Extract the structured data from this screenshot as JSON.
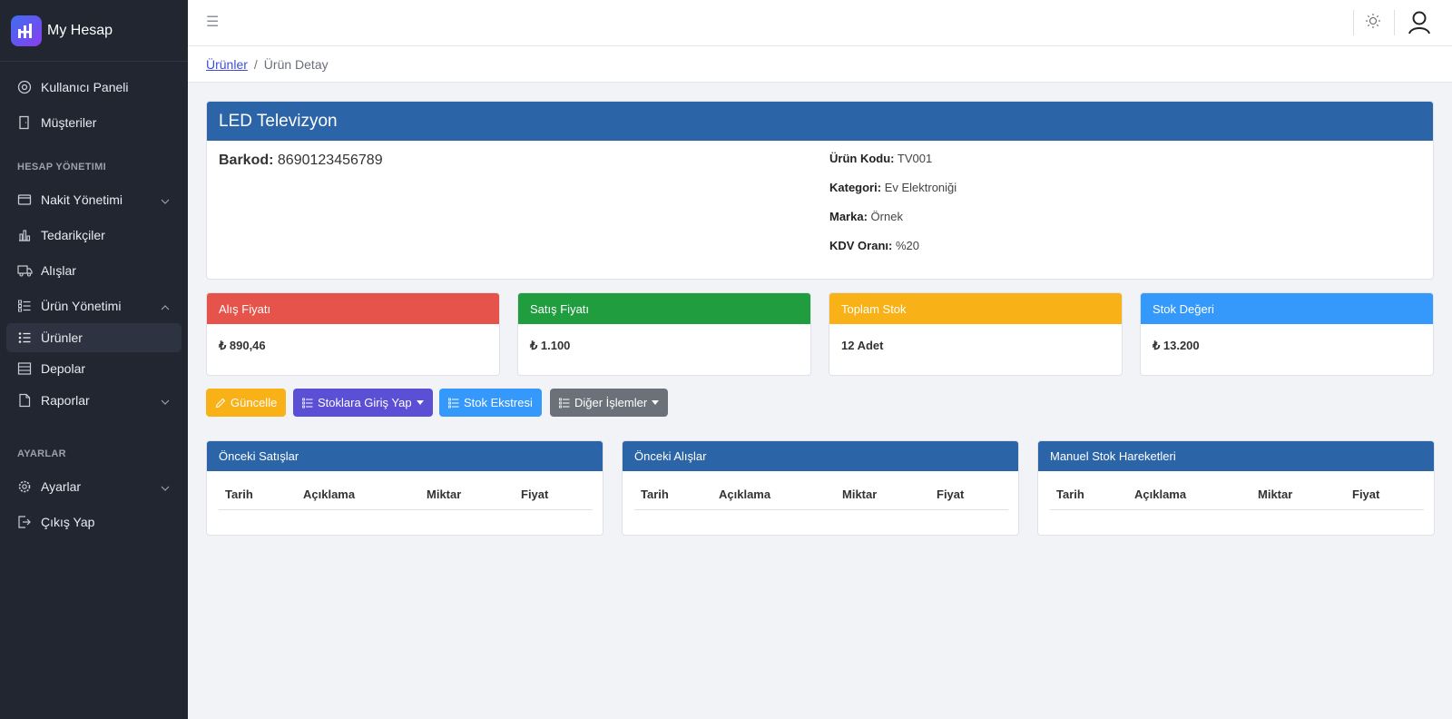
{
  "brand": {
    "name": "My Hesap"
  },
  "sidebar": {
    "items": [
      {
        "label": "Kullanıcı Paneli",
        "icon": "dashboard-icon"
      },
      {
        "label": "Müşteriler",
        "icon": "door-icon"
      }
    ],
    "section1": "HESAP YÖNETIMI",
    "account_items": [
      {
        "label": "Nakit Yönetimi",
        "icon": "wallet-icon",
        "chevron": "down"
      },
      {
        "label": "Tedarikçiler",
        "icon": "bar-chart-icon"
      },
      {
        "label": "Alışlar",
        "icon": "truck-icon"
      },
      {
        "label": "Ürün Yönetimi",
        "icon": "list-icon",
        "chevron": "up"
      },
      {
        "label": "Ürünler",
        "icon": "list-bullets-icon",
        "active": true
      },
      {
        "label": "Depolar",
        "icon": "storage-icon"
      },
      {
        "label": "Raporlar",
        "icon": "file-icon",
        "chevron": "down"
      }
    ],
    "section2": "AYARLAR",
    "settings_items": [
      {
        "label": "Ayarlar",
        "icon": "gear-icon",
        "chevron": "down"
      },
      {
        "label": "Çıkış Yap",
        "icon": "logout-icon"
      }
    ]
  },
  "breadcrumb": {
    "parent": "Ürünler",
    "separator": "/",
    "current": "Ürün Detay"
  },
  "product": {
    "title": "LED Televizyon",
    "barkod_label": "Barkod:",
    "barkod_value": "8690123456789",
    "details": [
      {
        "label": "Ürün Kodu:",
        "value": "TV001"
      },
      {
        "label": "Kategori:",
        "value": "Ev Elektroniği"
      },
      {
        "label": "Marka:",
        "value": "Örnek"
      },
      {
        "label": "KDV Oranı:",
        "value": "%20"
      }
    ]
  },
  "stats": [
    {
      "label": "Alış Fiyatı",
      "value": "₺ 890,46",
      "color": "#e5534b"
    },
    {
      "label": "Satış Fiyatı",
      "value": "₺ 1.100",
      "color": "#1f9d3f"
    },
    {
      "label": "Toplam Stok",
      "value": "12 Adet",
      "color": "#f8b117"
    },
    {
      "label": "Stok Değeri",
      "value": "₺ 13.200",
      "color": "#3499fb"
    }
  ],
  "actions": {
    "update": "Güncelle",
    "stock_entry": "Stoklara Giriş Yap",
    "stock_statement": "Stok Ekstresi",
    "other": "Diğer İşlemler"
  },
  "tables": [
    {
      "title": "Önceki Satışlar",
      "columns": [
        "Tarih",
        "Açıklama",
        "Miktar",
        "Fiyat"
      ]
    },
    {
      "title": "Önceki Alışlar",
      "columns": [
        "Tarih",
        "Açıklama",
        "Miktar",
        "Fiyat"
      ]
    },
    {
      "title": "Manuel Stok Hareketleri",
      "columns": [
        "Tarih",
        "Açıklama",
        "Miktar",
        "Fiyat"
      ]
    }
  ]
}
